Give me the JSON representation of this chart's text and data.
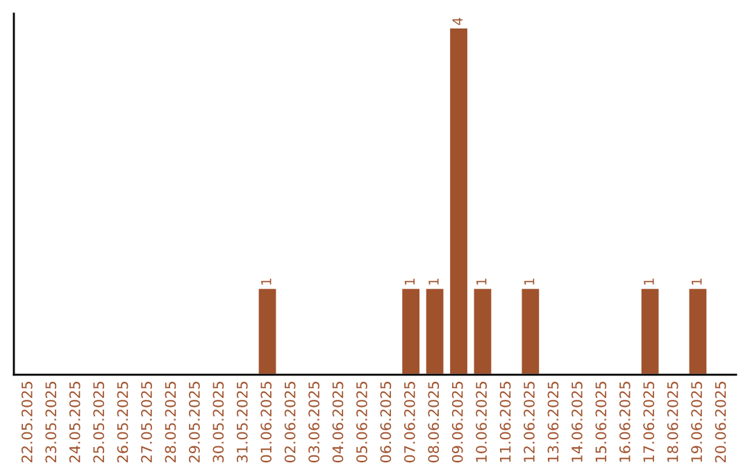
{
  "chart_data": {
    "type": "bar",
    "categories": [
      "22.05.2025",
      "23.05.2025",
      "24.05.2025",
      "25.05.2025",
      "26.05.2025",
      "27.05.2025",
      "28.05.2025",
      "29.05.2025",
      "30.05.2025",
      "31.05.2025",
      "01.06.2025",
      "02.06.2025",
      "03.06.2025",
      "04.06.2025",
      "05.06.2025",
      "06.06.2025",
      "07.06.2025",
      "08.06.2025",
      "09.06.2025",
      "10.06.2025",
      "11.06.2025",
      "12.06.2025",
      "13.06.2025",
      "14.06.2025",
      "15.06.2025",
      "16.06.2025",
      "17.06.2025",
      "18.06.2025",
      "19.06.2025",
      "20.06.2025"
    ],
    "values": [
      null,
      null,
      null,
      null,
      null,
      null,
      null,
      null,
      null,
      null,
      1,
      null,
      null,
      null,
      null,
      null,
      1,
      1,
      4,
      1,
      null,
      1,
      null,
      null,
      null,
      null,
      1,
      null,
      1,
      null
    ],
    "value_labels": [
      null,
      null,
      null,
      null,
      null,
      null,
      null,
      null,
      null,
      null,
      "1",
      null,
      null,
      null,
      null,
      null,
      "1",
      "1",
      "4",
      "1",
      null,
      "1",
      null,
      null,
      null,
      null,
      "1",
      null,
      "1",
      null
    ],
    "color": "#a0522d",
    "tick_labels": "x",
    "grid": false,
    "legend": false
  }
}
